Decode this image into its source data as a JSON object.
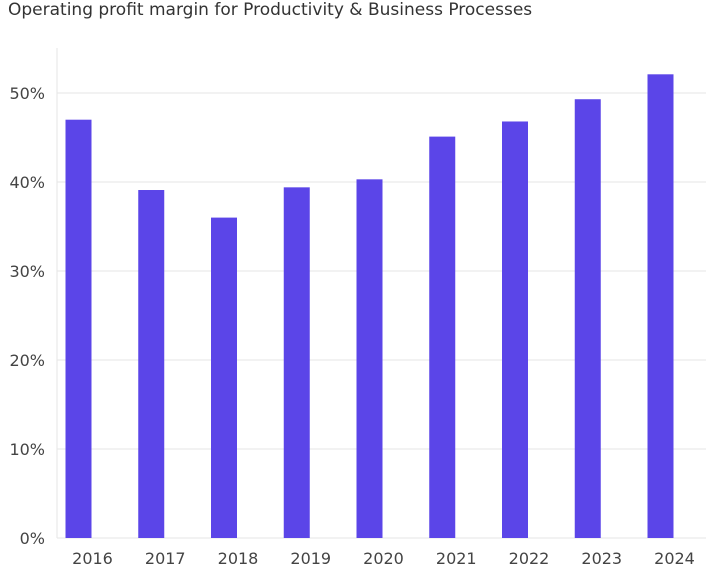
{
  "chart_data": {
    "type": "bar",
    "title": "Operating profit margin for Productivity & Business Processes",
    "xlabel": "",
    "ylabel": "",
    "categories": [
      "2016",
      "2017",
      "2018",
      "2019",
      "2020",
      "2021",
      "2022",
      "2023",
      "2024"
    ],
    "values": [
      47.0,
      39.1,
      36.0,
      39.4,
      40.3,
      45.1,
      46.8,
      49.3,
      52.1
    ],
    "ylim": [
      0,
      55
    ],
    "yticks": [
      0,
      10,
      20,
      30,
      40,
      50
    ],
    "ytick_labels": [
      "0%",
      "10%",
      "20%",
      "30%",
      "40%",
      "50%"
    ],
    "value_suffix": "%",
    "grid": true,
    "bar_color": "#5b45e8"
  }
}
